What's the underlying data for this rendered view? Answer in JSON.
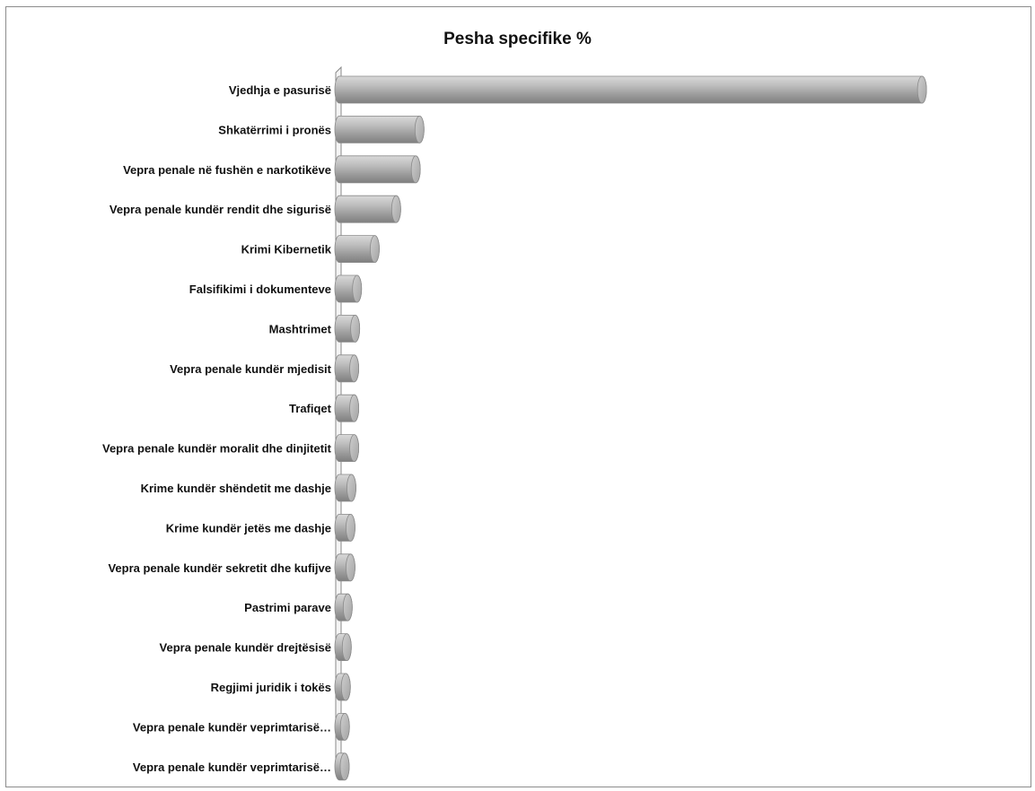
{
  "chart_data": {
    "type": "bar",
    "orientation": "horizontal",
    "style": "3d-cylinder",
    "title": "Pesha specifike %",
    "xlabel": "",
    "ylabel": "",
    "grid": false,
    "legend": "none",
    "bar_color": "#a6a6a6",
    "xlim": [
      0,
      70
    ],
    "categories": [
      "Vjedhja e pasurisë",
      "Shkatërrimi i pronës",
      "Vepra penale në fushën e narkotikëve",
      "Vepra penale kundër rendit dhe sigurisë",
      "Krimi Kibernetik",
      "Falsifikimi i dokumenteve",
      "Mashtrimet",
      "Vepra penale kundër mjedisit",
      "Trafiqet",
      "Vepra penale kundër moralit dhe dinjitetit",
      "Krime kundër shëndetit me dashje",
      "Krime kundër jetës me dashje",
      "Vepra penale kundër sekretit dhe kufijve",
      "Pastrimi parave",
      "Vepra penale kundër drejtësisë",
      "Regjimi juridik i tokës",
      "Vepra penale kundër veprimtarisë…",
      "Vepra penale kundër veprimtarisë…"
    ],
    "values": [
      62.5,
      8.6,
      8.2,
      6.1,
      3.8,
      1.9,
      1.7,
      1.6,
      1.6,
      1.6,
      1.3,
      1.2,
      1.2,
      0.9,
      0.8,
      0.7,
      0.6,
      0.5
    ]
  }
}
